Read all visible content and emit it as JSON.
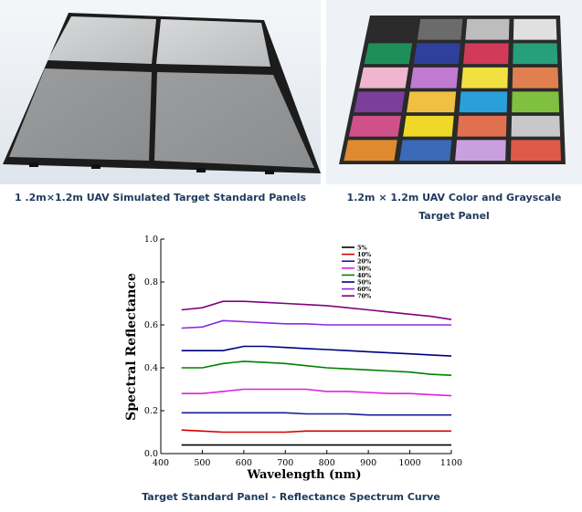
{
  "captions": {
    "left": "1 .2m×1.2m UAV Simulated Target Standard Panels",
    "right_line1": "1.2m × 1.2m UAV Color and Grayscale",
    "right_line2": "Target Panel",
    "bottom": "Target Standard Panel - Reflectance Spectrum Curve"
  },
  "color_target": {
    "rows": [
      [
        "#2b2b2b",
        "#6b6b6b",
        "#bdbdbd",
        "#e0e0e0"
      ],
      [
        "#1f8f5a",
        "#2e3f9c",
        "#d23a5a",
        "#26a07a"
      ],
      [
        "#f0b6d0",
        "#c07ad0",
        "#f0e040",
        "#e08050"
      ],
      [
        "#7a3f9a",
        "#f0c040",
        "#2aa0d8",
        "#80c040"
      ],
      [
        "#d0508a",
        "#f0d828",
        "#e07050",
        "#c8c8c8"
      ],
      [
        "#e08a30",
        "#3a6ab8",
        "#c8a0e0",
        "#e05a4a"
      ]
    ]
  },
  "chart_data": {
    "type": "line",
    "xlabel": "Wavelength (nm)",
    "ylabel": "Spectral Reflectance",
    "xlim": [
      400,
      1100
    ],
    "ylim": [
      0.0,
      1.0
    ],
    "xticks": [
      "400",
      "500",
      "600",
      "700",
      "800",
      "900",
      "1000",
      "1100"
    ],
    "yticks": [
      "0.0",
      "0.2",
      "0.4",
      "0.6",
      "0.8",
      "1.0"
    ],
    "x": [
      450,
      500,
      550,
      600,
      650,
      700,
      750,
      800,
      850,
      900,
      950,
      1000,
      1050,
      1100
    ],
    "series": [
      {
        "name": "5%",
        "color": "#000000",
        "values": [
          0.04,
          0.04,
          0.04,
          0.04,
          0.04,
          0.04,
          0.04,
          0.04,
          0.04,
          0.04,
          0.04,
          0.04,
          0.04,
          0.04
        ]
      },
      {
        "name": "10%",
        "color": "#d40000",
        "values": [
          0.11,
          0.105,
          0.1,
          0.1,
          0.1,
          0.1,
          0.105,
          0.105,
          0.105,
          0.105,
          0.105,
          0.105,
          0.105,
          0.105
        ]
      },
      {
        "name": "20%",
        "color": "#1a1a9a",
        "values": [
          0.19,
          0.19,
          0.19,
          0.19,
          0.19,
          0.19,
          0.185,
          0.185,
          0.185,
          0.18,
          0.18,
          0.18,
          0.18,
          0.18
        ]
      },
      {
        "name": "30%",
        "color": "#e020e0",
        "values": [
          0.28,
          0.28,
          0.29,
          0.3,
          0.3,
          0.3,
          0.3,
          0.29,
          0.29,
          0.285,
          0.28,
          0.28,
          0.275,
          0.27
        ]
      },
      {
        "name": "40%",
        "color": "#008000",
        "values": [
          0.4,
          0.4,
          0.42,
          0.43,
          0.425,
          0.42,
          0.41,
          0.4,
          0.395,
          0.39,
          0.385,
          0.38,
          0.37,
          0.365
        ]
      },
      {
        "name": "50%",
        "color": "#000080",
        "values": [
          0.48,
          0.48,
          0.48,
          0.5,
          0.5,
          0.495,
          0.49,
          0.485,
          0.48,
          0.475,
          0.47,
          0.465,
          0.46,
          0.455
        ]
      },
      {
        "name": "60%",
        "color": "#8a2be2",
        "values": [
          0.585,
          0.59,
          0.62,
          0.615,
          0.61,
          0.605,
          0.605,
          0.6,
          0.6,
          0.6,
          0.6,
          0.6,
          0.6,
          0.6
        ]
      },
      {
        "name": "70%",
        "color": "#800080",
        "values": [
          0.67,
          0.68,
          0.71,
          0.71,
          0.705,
          0.7,
          0.695,
          0.69,
          0.68,
          0.67,
          0.66,
          0.65,
          0.64,
          0.625
        ]
      }
    ],
    "legend": "top-right",
    "grid": false
  }
}
